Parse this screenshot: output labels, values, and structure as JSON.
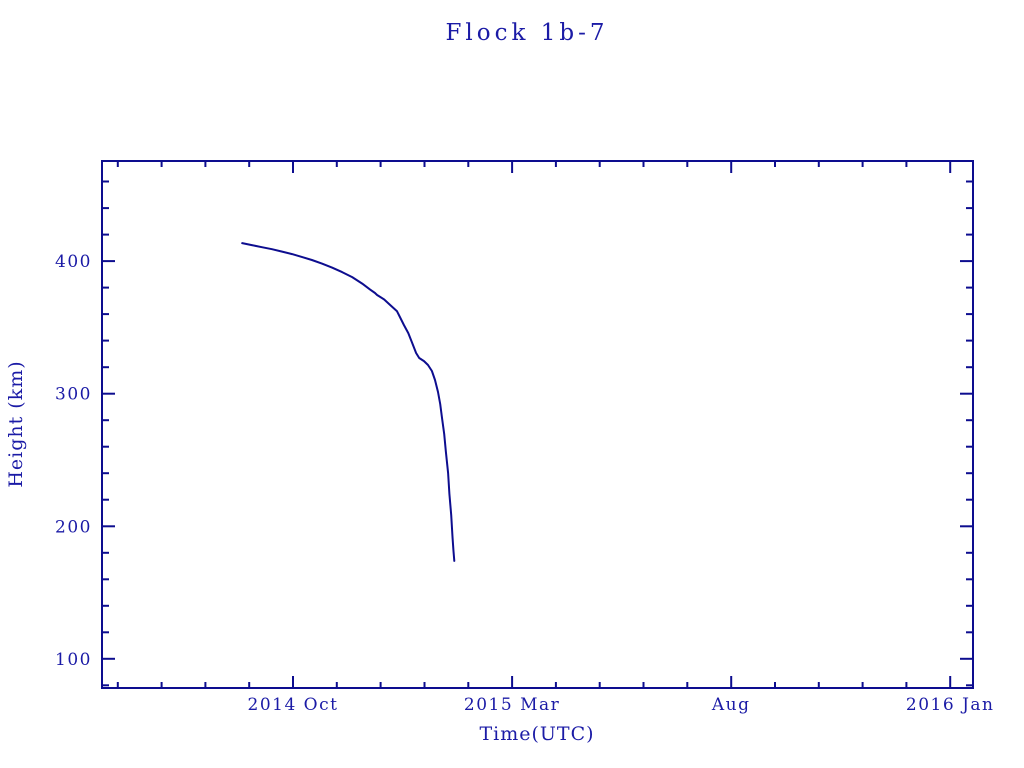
{
  "page": {
    "background": "#ffffff"
  },
  "chart_data": {
    "type": "line",
    "title": "Flock 1b-7",
    "xlabel": "Time(UTC)",
    "ylabel": "Height (km)",
    "legend": "none",
    "grid": false,
    "colors": {
      "ink": "#1b1ba6",
      "line": "#0d0d8f"
    },
    "x_unit": "months since 2014-01-01 (9 = 2014 Oct 1, 14 = 2015 Mar 1, 19 = 2015 Aug 1, 24 = 2016 Jan 1)",
    "xlim": [
      4.64,
      24.52
    ],
    "ylim": [
      78,
      475.5
    ],
    "x_ticks_major": [
      {
        "t": 9,
        "label": "2014 Oct"
      },
      {
        "t": 14,
        "label": "2015 Mar"
      },
      {
        "t": 19,
        "label": "Aug"
      },
      {
        "t": 24,
        "label": "2016 Jan"
      }
    ],
    "x_ticks_minor": [
      5,
      6,
      7,
      8,
      10,
      11,
      12,
      13,
      15,
      16,
      17,
      18,
      20,
      21,
      22,
      23
    ],
    "y_ticks_major": [
      {
        "v": 100,
        "label": "100"
      },
      {
        "v": 200,
        "label": "200"
      },
      {
        "v": 300,
        "label": "300"
      },
      {
        "v": 400,
        "label": "400"
      }
    ],
    "y_ticks_minor": [
      80,
      120,
      140,
      160,
      180,
      220,
      240,
      260,
      280,
      320,
      340,
      360,
      380,
      420,
      440,
      460
    ],
    "series": [
      {
        "name": "Flock 1b-7 orbital height",
        "color": "#0d0d8f",
        "points": [
          [
            7.84,
            413.6
          ],
          [
            8.06,
            412.1
          ],
          [
            8.29,
            410.5
          ],
          [
            8.52,
            409.0
          ],
          [
            8.75,
            407.2
          ],
          [
            8.98,
            405.3
          ],
          [
            9.21,
            403.0
          ],
          [
            9.43,
            400.8
          ],
          [
            9.66,
            398.1
          ],
          [
            9.89,
            395.1
          ],
          [
            10.12,
            391.7
          ],
          [
            10.35,
            387.9
          ],
          [
            10.58,
            383.0
          ],
          [
            10.76,
            378.5
          ],
          [
            10.87,
            375.9
          ],
          [
            10.92,
            374.4
          ],
          [
            11.08,
            371.0
          ],
          [
            11.22,
            366.8
          ],
          [
            11.37,
            362.3
          ],
          [
            11.44,
            357.8
          ],
          [
            11.53,
            351.8
          ],
          [
            11.63,
            345.7
          ],
          [
            11.72,
            338.2
          ],
          [
            11.81,
            330.7
          ],
          [
            11.88,
            326.9
          ],
          [
            11.99,
            324.6
          ],
          [
            12.08,
            321.6
          ],
          [
            12.17,
            317.1
          ],
          [
            12.24,
            310.3
          ],
          [
            12.31,
            301.3
          ],
          [
            12.36,
            292.2
          ],
          [
            12.4,
            281.7
          ],
          [
            12.45,
            269.6
          ],
          [
            12.49,
            256.0
          ],
          [
            12.54,
            240.2
          ],
          [
            12.57,
            224.4
          ],
          [
            12.61,
            208.6
          ],
          [
            12.64,
            192.0
          ],
          [
            12.66,
            182.2
          ],
          [
            12.68,
            173.9
          ]
        ]
      }
    ]
  }
}
